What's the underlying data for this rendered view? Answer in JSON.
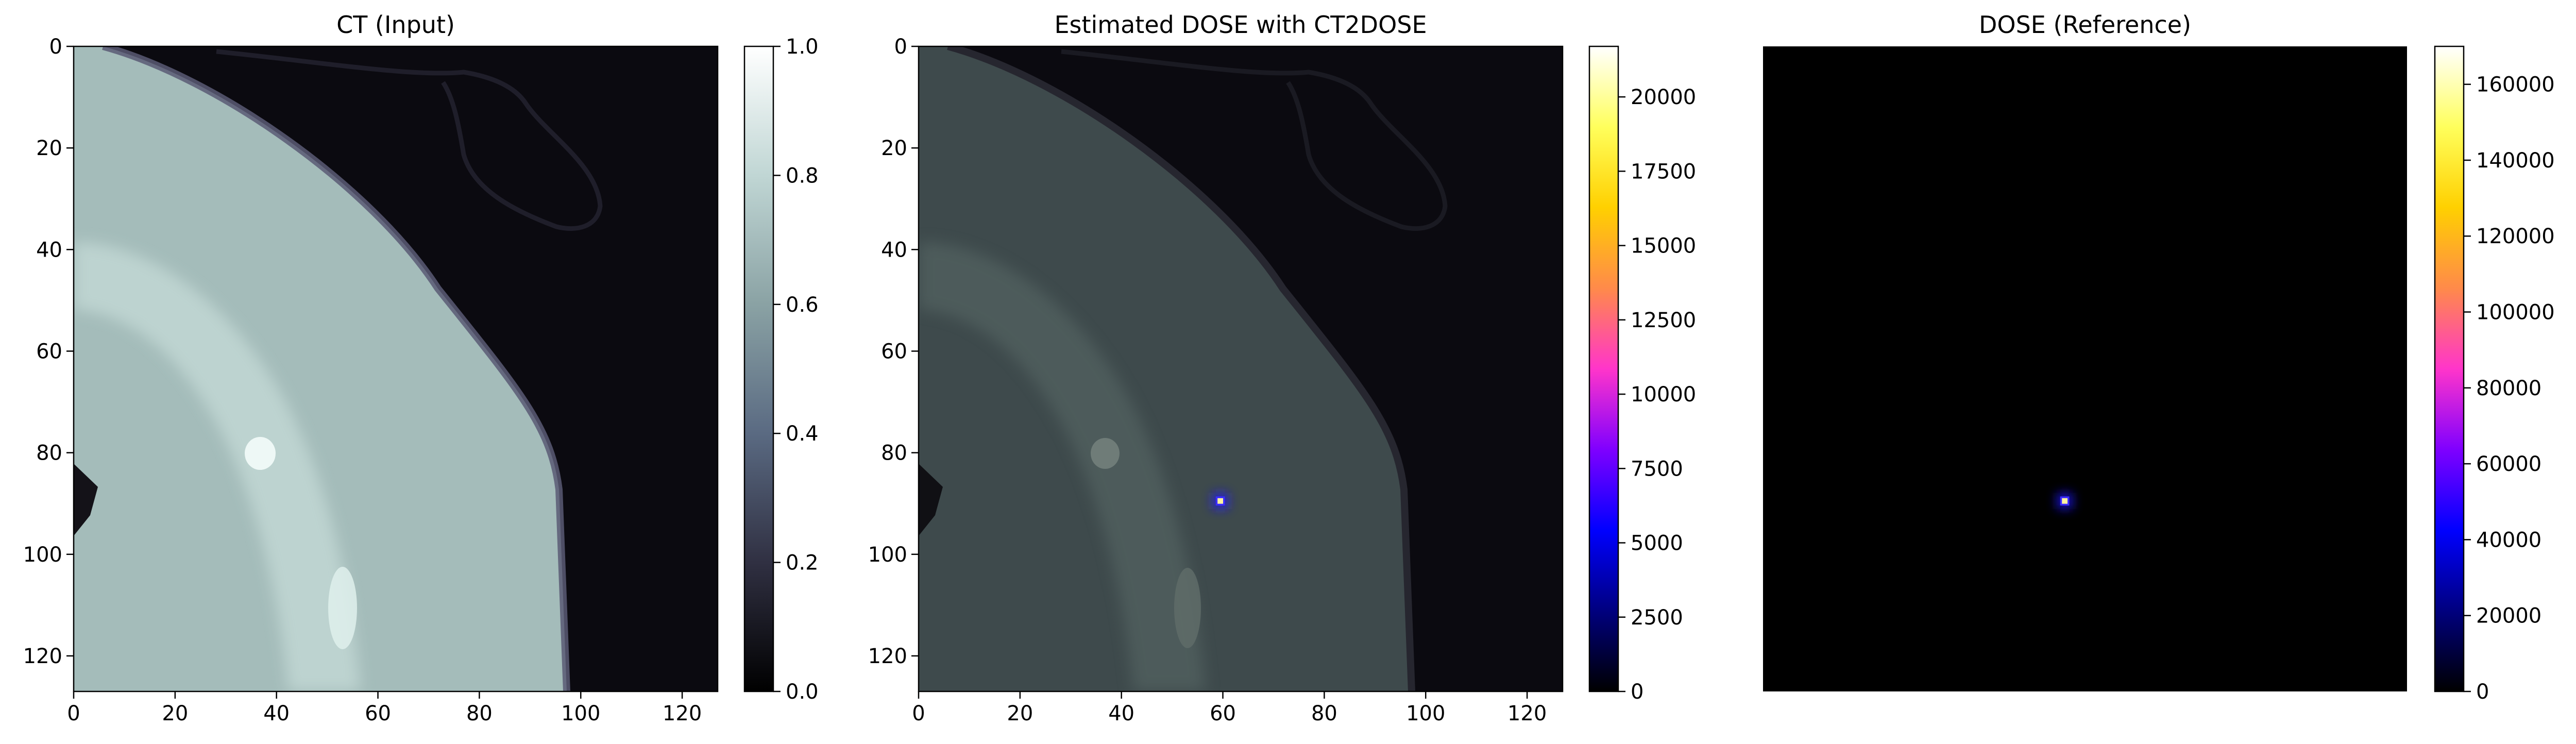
{
  "colors": {
    "background": "#ffffff",
    "ct_dark": "#0b0a10",
    "ct_tissue": "#a4bcba",
    "ct_bone": "#d6ece8",
    "dose_spot": "#fff3a0",
    "dose_halo": "#1c14ff"
  },
  "chart_data": [
    {
      "type": "heatmap",
      "title": "CT (Input)",
      "xlabel": "",
      "ylabel": "",
      "xlim": [
        0,
        127
      ],
      "ylim": [
        127,
        0
      ],
      "xticks": [
        0,
        20,
        40,
        60,
        80,
        100,
        120
      ],
      "yticks": [
        0,
        20,
        40,
        60,
        80,
        100,
        120
      ],
      "colormap": "bone",
      "colorbar": {
        "range": [
          0.0,
          1.0
        ],
        "ticks": [
          "0.0",
          "0.2",
          "0.4",
          "0.6",
          "0.8",
          "1.0"
        ],
        "tick_values": [
          0.0,
          0.2,
          0.4,
          0.6,
          0.8,
          1.0
        ],
        "stops": [
          "#000000",
          "#303042",
          "#5a6a82",
          "#8aa2a4",
          "#c0d6d4",
          "#ffffff"
        ]
      },
      "image_description_values": {
        "tissue_level": 0.65,
        "bone_level": 0.85,
        "air_level": 0.02
      }
    },
    {
      "type": "heatmap",
      "title": "Estimated DOSE with CT2DOSE",
      "xlabel": "",
      "ylabel": "",
      "xlim": [
        0,
        127
      ],
      "ylim": [
        127,
        0
      ],
      "xticks": [
        0,
        20,
        40,
        60,
        80,
        100,
        120
      ],
      "yticks": [
        0,
        20,
        40,
        60,
        80,
        100,
        120
      ],
      "colormap": "gnuplot2",
      "colorbar": {
        "range": [
          0,
          21700
        ],
        "ticks": [
          "0",
          "2500",
          "5000",
          "7500",
          "10000",
          "12500",
          "15000",
          "17500",
          "20000"
        ],
        "tick_values": [
          0,
          2500,
          5000,
          7500,
          10000,
          12500,
          15000,
          17500,
          20000
        ],
        "stops": [
          "#000000",
          "#00007f",
          "#0000ff",
          "#7f00ff",
          "#ff35ca",
          "#ff8a4a",
          "#ffd000",
          "#ffff5c",
          "#ffffff"
        ]
      },
      "hotspot": {
        "x": 59.5,
        "y": 89.5,
        "value": 21700
      }
    },
    {
      "type": "heatmap",
      "title": "DOSE (Reference)",
      "xlabel": "",
      "ylabel": "",
      "xlim": [
        0,
        127
      ],
      "ylim": [
        127,
        0
      ],
      "axes_visible": false,
      "colormap": "gnuplot2",
      "colorbar": {
        "range": [
          0,
          170000
        ],
        "ticks": [
          "0",
          "20000",
          "40000",
          "60000",
          "80000",
          "100000",
          "120000",
          "140000",
          "160000"
        ],
        "tick_values": [
          0,
          20000,
          40000,
          60000,
          80000,
          100000,
          120000,
          140000,
          160000
        ],
        "stops": [
          "#000000",
          "#00007f",
          "#0000ff",
          "#7f00ff",
          "#ff35ca",
          "#ff8a4a",
          "#ffd000",
          "#ffff5c",
          "#ffffff"
        ]
      },
      "hotspot": {
        "x": 59.5,
        "y": 89.5,
        "value": 170000
      }
    }
  ]
}
